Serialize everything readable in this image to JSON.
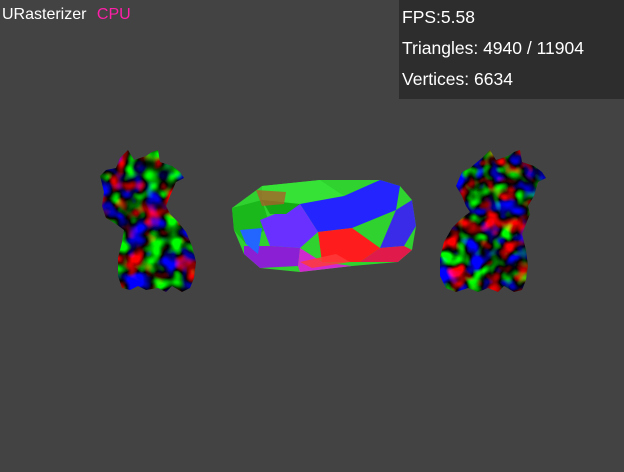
{
  "app": {
    "title": "URasterizer",
    "backend": "CPU"
  },
  "stats": {
    "fps_label": "FPS:",
    "fps_value": "5.58",
    "triangles_label": "Triangles:",
    "triangles_value": "4940 / 11904",
    "vertices_label": "Vertices:",
    "vertices_value": "6634"
  },
  "colors": {
    "background": "#434343",
    "stats_panel": "#2d2d2d",
    "text": "#ffffff",
    "backend_accent": "#ff1fa8"
  },
  "scene": {
    "objects": [
      {
        "kind": "mesh-model",
        "shading": "vertex-color-rgb"
      },
      {
        "kind": "mesh-model",
        "shading": "vertex-color-rgb"
      },
      {
        "kind": "mesh-model",
        "shading": "vertex-color-rgb"
      }
    ]
  }
}
